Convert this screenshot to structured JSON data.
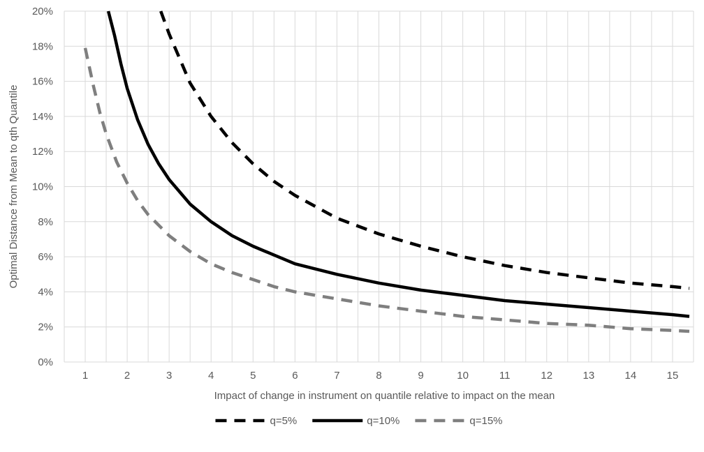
{
  "chart_data": {
    "type": "line",
    "title": "",
    "xlabel": "Impact of change in instrument on quantile relative to impact on the mean",
    "ylabel": "Optimal Distance from Mean to qth Quantile",
    "xlim": [
      0.5,
      15.5
    ],
    "ylim": [
      0,
      20
    ],
    "x_ticks": [
      "1",
      "2",
      "3",
      "4",
      "5",
      "6",
      "7",
      "8",
      "9",
      "10",
      "11",
      "12",
      "13",
      "14",
      "15"
    ],
    "y_ticks": [
      "0%",
      "2%",
      "4%",
      "6%",
      "8%",
      "10%",
      "12%",
      "14%",
      "16%",
      "18%",
      "20%"
    ],
    "y_unit": "%",
    "grid": true,
    "legend_position": "bottom-center",
    "series": [
      {
        "name": "q=5%",
        "color": "#000000",
        "style": "dashed",
        "x": [
          2.8,
          3.0,
          3.5,
          4.0,
          4.5,
          5.0,
          5.5,
          6.0,
          7.0,
          8.0,
          9.0,
          10.0,
          11.0,
          12.0,
          13.0,
          14.0,
          15.0,
          15.4
        ],
        "values": [
          20.0,
          18.7,
          15.9,
          14.0,
          12.5,
          11.3,
          10.3,
          9.5,
          8.2,
          7.3,
          6.6,
          6.0,
          5.5,
          5.1,
          4.8,
          4.5,
          4.3,
          4.2
        ]
      },
      {
        "name": "q=10%",
        "color": "#000000",
        "style": "solid",
        "x": [
          1.55,
          1.7,
          1.85,
          2.0,
          2.25,
          2.5,
          2.75,
          3.0,
          3.5,
          4.0,
          4.5,
          5.0,
          5.5,
          6.0,
          7.0,
          8.0,
          9.0,
          10.0,
          11.0,
          12.0,
          13.0,
          14.0,
          15.0,
          15.4
        ],
        "values": [
          20.0,
          18.6,
          17.0,
          15.6,
          13.8,
          12.4,
          11.3,
          10.4,
          9.0,
          8.0,
          7.2,
          6.6,
          6.1,
          5.6,
          5.0,
          4.5,
          4.1,
          3.8,
          3.5,
          3.3,
          3.1,
          2.9,
          2.7,
          2.6
        ]
      },
      {
        "name": "q=15%",
        "color": "#7f7f7f",
        "style": "dashed",
        "x": [
          1.0,
          1.1,
          1.2,
          1.35,
          1.5,
          1.75,
          2.0,
          2.25,
          2.5,
          3.0,
          3.5,
          4.0,
          4.5,
          5.0,
          5.5,
          6.0,
          7.0,
          8.0,
          9.0,
          10.0,
          11.0,
          12.0,
          13.0,
          14.0,
          15.0,
          15.4
        ],
        "values": [
          17.9,
          16.8,
          15.7,
          14.2,
          13.0,
          11.4,
          10.2,
          9.2,
          8.4,
          7.2,
          6.3,
          5.6,
          5.1,
          4.7,
          4.3,
          4.0,
          3.6,
          3.2,
          2.9,
          2.6,
          2.4,
          2.2,
          2.1,
          1.9,
          1.8,
          1.75
        ]
      }
    ]
  }
}
